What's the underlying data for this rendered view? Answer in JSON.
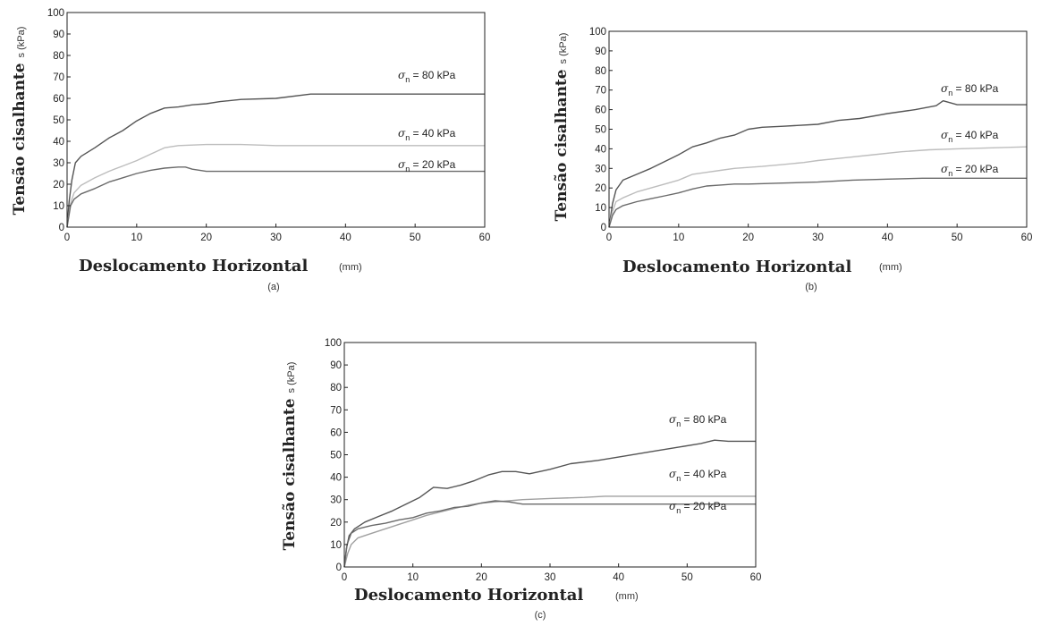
{
  "chart_data": [
    {
      "type": "line",
      "panel_label": "(a)",
      "ylabel": {
        "prefix": "Tensão cisalhante",
        "subscript": "s",
        "unit": "(kPa)"
      },
      "xlabel": {
        "text": "Deslocamento Horizontal",
        "unit": "(mm)"
      },
      "xlim": [
        0,
        60
      ],
      "ylim": [
        0,
        100
      ],
      "xticks": [
        0,
        10,
        20,
        30,
        40,
        50,
        60
      ],
      "yticks": [
        0,
        10,
        20,
        30,
        40,
        50,
        60,
        70,
        80,
        90,
        100
      ],
      "grid": false,
      "series": [
        {
          "name": "σn = 80 kPa",
          "color": "#555555",
          "label": {
            "sigma": "σ",
            "sub": "n",
            "rest": " = 80 kPa"
          },
          "points": [
            [
              0,
              0
            ],
            [
              0.3,
              12
            ],
            [
              0.7,
              22
            ],
            [
              1.2,
              30
            ],
            [
              2,
              33
            ],
            [
              4,
              37
            ],
            [
              6,
              41.5
            ],
            [
              8,
              45
            ],
            [
              10,
              49.5
            ],
            [
              12,
              53
            ],
            [
              14,
              55.5
            ],
            [
              16,
              56
            ],
            [
              18,
              57
            ],
            [
              20,
              57.5
            ],
            [
              22,
              58.5
            ],
            [
              25,
              59.5
            ],
            [
              30,
              60
            ],
            [
              35,
              62
            ],
            [
              40,
              62
            ],
            [
              50,
              62
            ],
            [
              60,
              62
            ]
          ]
        },
        {
          "name": "σn = 40 kPa",
          "color": "#bdbdbd",
          "label": {
            "sigma": "σ",
            "sub": "n",
            "rest": " = 40 kPa"
          },
          "points": [
            [
              0,
              0
            ],
            [
              0.5,
              11
            ],
            [
              1,
              16
            ],
            [
              2,
              19.5
            ],
            [
              4,
              23
            ],
            [
              6,
              26
            ],
            [
              8,
              28.5
            ],
            [
              10,
              31
            ],
            [
              12,
              34
            ],
            [
              14,
              37
            ],
            [
              16,
              38
            ],
            [
              20,
              38.5
            ],
            [
              25,
              38.5
            ],
            [
              30,
              38
            ],
            [
              40,
              38
            ],
            [
              50,
              38
            ],
            [
              60,
              38
            ]
          ]
        },
        {
          "name": "σn = 20 kPa",
          "color": "#6a6a6a",
          "label": {
            "sigma": "σ",
            "sub": "n",
            "rest": " = 20 kPa"
          },
          "points": [
            [
              0,
              0
            ],
            [
              0.5,
              10
            ],
            [
              1,
              13
            ],
            [
              2,
              15.5
            ],
            [
              4,
              18
            ],
            [
              6,
              21
            ],
            [
              8,
              23
            ],
            [
              10,
              25
            ],
            [
              12,
              26.5
            ],
            [
              14,
              27.5
            ],
            [
              16,
              28
            ],
            [
              17,
              28
            ],
            [
              18,
              27
            ],
            [
              20,
              26
            ],
            [
              25,
              26
            ],
            [
              30,
              26
            ],
            [
              40,
              26
            ],
            [
              50,
              26
            ],
            [
              60,
              26
            ]
          ]
        }
      ]
    },
    {
      "type": "line",
      "panel_label": "(b)",
      "ylabel": {
        "prefix": "Tensão cisalhante",
        "subscript": "s",
        "unit": "(kPa)"
      },
      "xlabel": {
        "text": "Deslocamento Horizontal",
        "unit": "(mm)"
      },
      "xlim": [
        0,
        60
      ],
      "ylim": [
        0,
        100
      ],
      "xticks": [
        0,
        10,
        20,
        30,
        40,
        50,
        60
      ],
      "yticks": [
        0,
        10,
        20,
        30,
        40,
        50,
        60,
        70,
        80,
        90,
        100
      ],
      "grid": false,
      "series": [
        {
          "name": "σn = 80 kPa",
          "color": "#555555",
          "label": {
            "sigma": "σ",
            "sub": "n",
            "rest": " = 80 kPa"
          },
          "points": [
            [
              0,
              0
            ],
            [
              0.5,
              12
            ],
            [
              1,
              19
            ],
            [
              2,
              24
            ],
            [
              4,
              27
            ],
            [
              6,
              30
            ],
            [
              8,
              33.5
            ],
            [
              10,
              37
            ],
            [
              12,
              41
            ],
            [
              14,
              43
            ],
            [
              16,
              45.5
            ],
            [
              18,
              47
            ],
            [
              20,
              50
            ],
            [
              22,
              51
            ],
            [
              25,
              51.5
            ],
            [
              30,
              52.5
            ],
            [
              33,
              54.5
            ],
            [
              36,
              55.5
            ],
            [
              40,
              58
            ],
            [
              44,
              60
            ],
            [
              47,
              62
            ],
            [
              48,
              64.5
            ],
            [
              50,
              62.5
            ],
            [
              55,
              62.5
            ],
            [
              60,
              62.5
            ]
          ]
        },
        {
          "name": "σn = 40 kPa",
          "color": "#bdbdbd",
          "label": {
            "sigma": "σ",
            "sub": "n",
            "rest": " = 40 kPa"
          },
          "points": [
            [
              0,
              0
            ],
            [
              0.5,
              8
            ],
            [
              1,
              13
            ],
            [
              2,
              15
            ],
            [
              4,
              18
            ],
            [
              6,
              20
            ],
            [
              8,
              22
            ],
            [
              10,
              24
            ],
            [
              12,
              27
            ],
            [
              14,
              28
            ],
            [
              16,
              29
            ],
            [
              18,
              30
            ],
            [
              20,
              30.5
            ],
            [
              22,
              31
            ],
            [
              25,
              32
            ],
            [
              28,
              33
            ],
            [
              30,
              34
            ],
            [
              34,
              35.5
            ],
            [
              38,
              37
            ],
            [
              42,
              38.5
            ],
            [
              46,
              39.5
            ],
            [
              50,
              40
            ],
            [
              55,
              40.5
            ],
            [
              60,
              41
            ]
          ]
        },
        {
          "name": "σn = 20 kPa",
          "color": "#6a6a6a",
          "label": {
            "sigma": "σ",
            "sub": "n",
            "rest": " = 20 kPa"
          },
          "points": [
            [
              0,
              0
            ],
            [
              0.5,
              6
            ],
            [
              1,
              9
            ],
            [
              2,
              11
            ],
            [
              4,
              13
            ],
            [
              6,
              14.5
            ],
            [
              8,
              16
            ],
            [
              10,
              17.5
            ],
            [
              12,
              19.5
            ],
            [
              14,
              21
            ],
            [
              16,
              21.5
            ],
            [
              18,
              22
            ],
            [
              20,
              22
            ],
            [
              25,
              22.5
            ],
            [
              30,
              23
            ],
            [
              35,
              24
            ],
            [
              40,
              24.5
            ],
            [
              45,
              25
            ],
            [
              50,
              25
            ],
            [
              55,
              25
            ],
            [
              60,
              25
            ]
          ]
        }
      ]
    },
    {
      "type": "line",
      "panel_label": "(c)",
      "ylabel": {
        "prefix": "Tensão cisalhante",
        "subscript": "s",
        "unit": "(kPa)"
      },
      "xlabel": {
        "text": "Deslocamento Horizontal",
        "unit": "(mm)"
      },
      "xlim": [
        0,
        60
      ],
      "ylim": [
        0,
        100
      ],
      "xticks": [
        0,
        10,
        20,
        30,
        40,
        50,
        60
      ],
      "yticks": [
        0,
        10,
        20,
        30,
        40,
        50,
        60,
        70,
        80,
        90,
        100
      ],
      "grid": false,
      "series": [
        {
          "name": "σn = 80 kPa",
          "color": "#555555",
          "label": {
            "sigma": "σ",
            "sub": "n",
            "rest": " = 80 kPa"
          },
          "points": [
            [
              0,
              0
            ],
            [
              0.3,
              8
            ],
            [
              0.7,
              14
            ],
            [
              1.5,
              17
            ],
            [
              3,
              20
            ],
            [
              5,
              22.5
            ],
            [
              7,
              25
            ],
            [
              9,
              28
            ],
            [
              11,
              31
            ],
            [
              13,
              35.5
            ],
            [
              15,
              35
            ],
            [
              17,
              36.5
            ],
            [
              19,
              38.5
            ],
            [
              21,
              41
            ],
            [
              23,
              42.5
            ],
            [
              25,
              42.5
            ],
            [
              27,
              41.5
            ],
            [
              30,
              43.5
            ],
            [
              33,
              46
            ],
            [
              37,
              47.5
            ],
            [
              41,
              49.5
            ],
            [
              45,
              51.5
            ],
            [
              49,
              53.5
            ],
            [
              52,
              55
            ],
            [
              54,
              56.5
            ],
            [
              56,
              56
            ],
            [
              60,
              56
            ]
          ]
        },
        {
          "name": "σn = 40 kPa",
          "color": "#a0a0a0",
          "label": {
            "sigma": "σ",
            "sub": "n",
            "rest": " = 40 kPa"
          },
          "points": [
            [
              0,
              0
            ],
            [
              0.5,
              6
            ],
            [
              1,
              10
            ],
            [
              2,
              13
            ],
            [
              4,
              15
            ],
            [
              6,
              17
            ],
            [
              8,
              19
            ],
            [
              10,
              21
            ],
            [
              12,
              23
            ],
            [
              14,
              24.5
            ],
            [
              16,
              26
            ],
            [
              18,
              27.5
            ],
            [
              20,
              28.5
            ],
            [
              22,
              29
            ],
            [
              24,
              29.5
            ],
            [
              26,
              30
            ],
            [
              30,
              30.5
            ],
            [
              35,
              31
            ],
            [
              38,
              31.5
            ],
            [
              40,
              31.5
            ],
            [
              45,
              31.5
            ],
            [
              50,
              31.5
            ],
            [
              60,
              31.5
            ]
          ]
        },
        {
          "name": "σn = 20 kPa",
          "color": "#6a6a6a",
          "label": {
            "sigma": "σ",
            "sub": "n",
            "rest": " = 20 kPa"
          },
          "points": [
            [
              0,
              0
            ],
            [
              0.4,
              10
            ],
            [
              1,
              15
            ],
            [
              2,
              17
            ],
            [
              4,
              18.5
            ],
            [
              6,
              19.5
            ],
            [
              8,
              21
            ],
            [
              10,
              22
            ],
            [
              12,
              24
            ],
            [
              14,
              25
            ],
            [
              16,
              26.5
            ],
            [
              18,
              27
            ],
            [
              20,
              28.5
            ],
            [
              22,
              29.5
            ],
            [
              24,
              29
            ],
            [
              26,
              28
            ],
            [
              30,
              28
            ],
            [
              40,
              28
            ],
            [
              50,
              28
            ],
            [
              60,
              28
            ]
          ]
        }
      ]
    }
  ]
}
